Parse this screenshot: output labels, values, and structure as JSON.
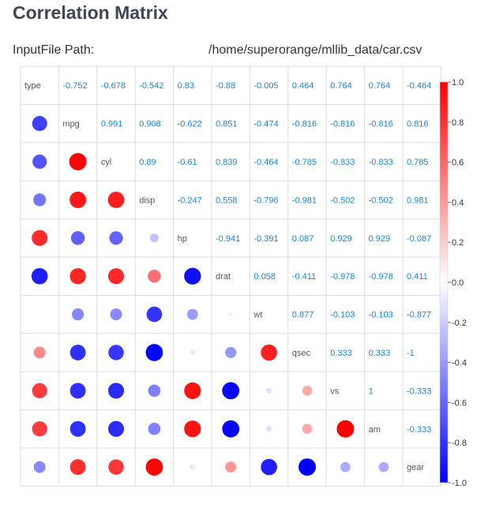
{
  "header": {
    "title": "Correlation Matrix",
    "input_label": "InputFile Path:",
    "input_path": "/home/superorange/mllib_data/car.csv"
  },
  "colors": {
    "positive": "#ff0000",
    "neutral": "#ffffff",
    "negative": "#0000ff",
    "value_text": "#1a86d1",
    "grid": "#dddddd"
  },
  "chart_data": {
    "type": "heatmap",
    "title": "Correlation Matrix",
    "variables": [
      "type",
      "mpg",
      "cyl",
      "disp",
      "hp",
      "drat",
      "wt",
      "qsec",
      "vs",
      "am",
      "gear"
    ],
    "matrix": [
      [
        1,
        -0.752,
        -0.678,
        -0.542,
        0.83,
        -0.88,
        -0.005,
        0.464,
        0.764,
        0.764,
        -0.464
      ],
      [
        -0.752,
        1,
        0.991,
        0.908,
        -0.622,
        0.851,
        -0.474,
        -0.816,
        -0.816,
        -0.816,
        0.816
      ],
      [
        -0.678,
        0.991,
        1,
        0.89,
        -0.61,
        0.839,
        -0.464,
        -0.785,
        -0.833,
        -0.833,
        0.785
      ],
      [
        -0.542,
        0.908,
        0.89,
        1,
        -0.247,
        0.558,
        -0.796,
        -0.981,
        -0.502,
        -0.502,
        0.981
      ],
      [
        0.83,
        -0.622,
        -0.61,
        -0.247,
        1,
        -0.941,
        -0.391,
        0.087,
        0.929,
        0.929,
        -0.087
      ],
      [
        -0.88,
        0.851,
        0.839,
        0.558,
        -0.941,
        1,
        0.058,
        -0.411,
        -0.978,
        -0.978,
        0.411
      ],
      [
        -0.005,
        -0.474,
        -0.464,
        -0.796,
        -0.391,
        0.058,
        1,
        0.877,
        -0.103,
        -0.103,
        -0.877
      ],
      [
        0.464,
        -0.816,
        -0.785,
        -0.981,
        0.087,
        -0.411,
        0.877,
        1,
        0.333,
        0.333,
        -1
      ],
      [
        0.764,
        -0.816,
        -0.833,
        -0.502,
        0.929,
        -0.978,
        -0.103,
        0.333,
        1,
        1,
        -0.333
      ],
      [
        0.764,
        -0.816,
        -0.833,
        -0.502,
        0.929,
        -0.978,
        -0.103,
        0.333,
        1,
        1,
        -0.333
      ],
      [
        -0.464,
        0.816,
        0.785,
        0.981,
        -0.087,
        0.411,
        -0.877,
        -1,
        -0.333,
        -0.333,
        1
      ]
    ],
    "upper_display": [
      [
        null,
        "-0.752",
        "-0.678",
        "-0.542",
        "0.83",
        "-0.88",
        "-0.005",
        "0.464",
        "0.764",
        "0.764",
        "-0.464"
      ],
      [
        null,
        null,
        "0.991",
        "0.908",
        "-0.622",
        "0.851",
        "-0.474",
        "-0.816",
        "-0.816",
        "-0.816",
        "0.816"
      ],
      [
        null,
        null,
        null,
        "0.89",
        "-0.61",
        "0.839",
        "-0.464",
        "-0.785",
        "-0.833",
        "-0.833",
        "0.785"
      ],
      [
        null,
        null,
        null,
        null,
        "-0.247",
        "0.558",
        "-0.796",
        "-0.981",
        "-0.502",
        "-0.502",
        "0.981"
      ],
      [
        null,
        null,
        null,
        null,
        null,
        "-0.941",
        "-0.391",
        "0.087",
        "0.929",
        "0.929",
        "-0.087"
      ],
      [
        null,
        null,
        null,
        null,
        null,
        null,
        "0.058",
        "-0.411",
        "-0.978",
        "-0.978",
        "0.411"
      ],
      [
        null,
        null,
        null,
        null,
        null,
        null,
        null,
        "0.877",
        "-0.103",
        "-0.103",
        "-0.877"
      ],
      [
        null,
        null,
        null,
        null,
        null,
        null,
        null,
        null,
        "0.333",
        "0.333",
        "-1"
      ],
      [
        null,
        null,
        null,
        null,
        null,
        null,
        null,
        null,
        null,
        "1",
        "-0.333"
      ],
      [
        null,
        null,
        null,
        null,
        null,
        null,
        null,
        null,
        null,
        null,
        "-0.333"
      ],
      [
        null,
        null,
        null,
        null,
        null,
        null,
        null,
        null,
        null,
        null,
        null
      ]
    ],
    "upper": "values",
    "lower": "circles",
    "color_scale": {
      "range": [
        -1,
        1
      ],
      "ticks": [
        "1.0",
        "0.8",
        "0.6",
        "0.4",
        "0.2",
        "0.0",
        "-0.2",
        "-0.4",
        "-0.6",
        "-0.8",
        "-1.0"
      ]
    },
    "legend_position": "right"
  }
}
